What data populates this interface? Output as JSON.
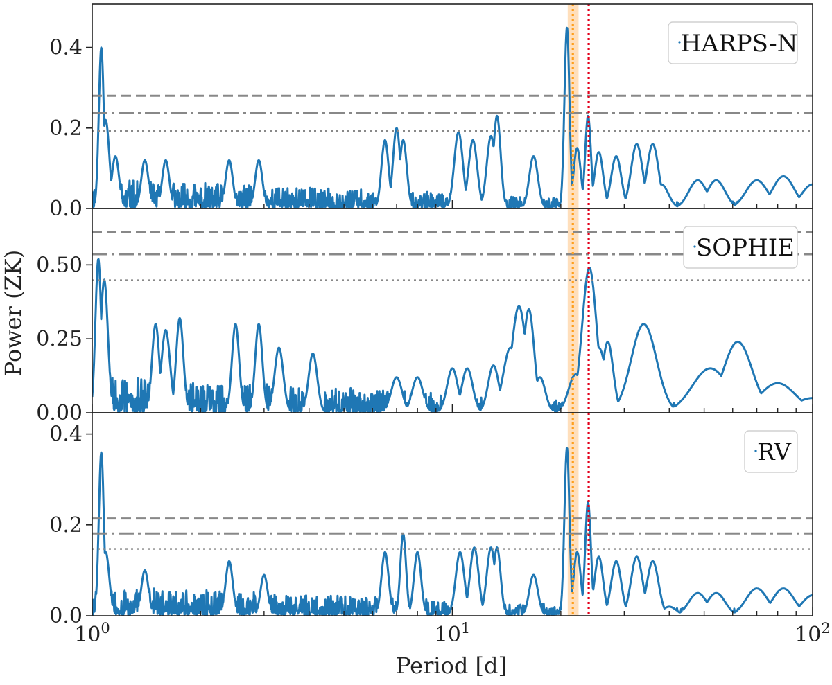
{
  "chart_data": {
    "type": "line",
    "xlabel": "Period [d]",
    "ylabel": "Power (ZK)",
    "xscale": "log",
    "xlim": [
      1,
      100
    ],
    "x_ticks": [
      {
        "base": "10",
        "exp": "0",
        "value": 1
      },
      {
        "base": "10",
        "exp": "1",
        "value": 10
      },
      {
        "base": "10",
        "exp": "2",
        "value": 100
      }
    ],
    "highlight_band": {
      "from": 20.9,
      "to": 22.4,
      "color": "#ffd9b0"
    },
    "vlines": [
      {
        "x": 21.6,
        "color": "#ff9f1c",
        "style": "dotted"
      },
      {
        "x": 23.9,
        "color": "#e3001b",
        "style": "dotted"
      }
    ],
    "line_color": "#1f77b4",
    "threshold_color": "#888888",
    "panels": [
      {
        "name": "HARPS-N",
        "legend": "HARPS-N",
        "ylim": [
          0,
          0.5
        ],
        "yticks": [
          {
            "value": 0.0,
            "label": "0.0"
          },
          {
            "value": 0.2,
            "label": "0.2"
          },
          {
            "value": 0.4,
            "label": "0.4"
          }
        ],
        "fap": [
          0.28,
          0.237,
          0.193
        ],
        "seed": 11,
        "noise": 0.045,
        "peaks": [
          [
            1.06,
            0.4,
            0.007
          ],
          [
            1.09,
            0.22,
            0.01
          ],
          [
            1.16,
            0.13,
            0.01
          ],
          [
            1.4,
            0.12,
            0.01
          ],
          [
            1.6,
            0.12,
            0.01
          ],
          [
            2.4,
            0.12,
            0.01
          ],
          [
            2.9,
            0.12,
            0.01
          ],
          [
            6.5,
            0.17,
            0.01
          ],
          [
            7.0,
            0.2,
            0.01
          ],
          [
            7.3,
            0.17,
            0.01
          ],
          [
            10.4,
            0.19,
            0.012
          ],
          [
            11.4,
            0.17,
            0.012
          ],
          [
            12.8,
            0.18,
            0.012
          ],
          [
            13.3,
            0.23,
            0.01
          ],
          [
            16.8,
            0.13,
            0.012
          ],
          [
            20.8,
            0.45,
            0.007
          ],
          [
            22.2,
            0.15,
            0.01
          ],
          [
            23.8,
            0.23,
            0.008
          ],
          [
            25.5,
            0.14,
            0.012
          ],
          [
            28.5,
            0.13,
            0.014
          ],
          [
            32.5,
            0.16,
            0.016
          ],
          [
            36.0,
            0.16,
            0.016
          ],
          [
            38.0,
            0.06,
            0.02
          ],
          [
            48.0,
            0.07,
            0.025
          ],
          [
            54.0,
            0.07,
            0.025
          ],
          [
            70.0,
            0.07,
            0.03
          ],
          [
            83.0,
            0.08,
            0.03
          ],
          [
            100.0,
            0.06,
            0.03
          ]
        ]
      },
      {
        "name": "SOPHIE",
        "legend": "SOPHIE",
        "ylim": [
          0,
          0.68
        ],
        "yticks": [
          {
            "value": 0.0,
            "label": "0.00"
          },
          {
            "value": 0.25,
            "label": "0.25"
          },
          {
            "value": 0.5,
            "label": "0.50"
          }
        ],
        "fap": [
          0.61,
          0.536,
          0.448
        ],
        "seed": 29,
        "noise": 0.08,
        "peaks": [
          [
            1.04,
            0.52,
            0.008
          ],
          [
            1.08,
            0.45,
            0.01
          ],
          [
            1.5,
            0.3,
            0.01
          ],
          [
            1.6,
            0.28,
            0.012
          ],
          [
            1.75,
            0.32,
            0.01
          ],
          [
            2.5,
            0.3,
            0.01
          ],
          [
            2.9,
            0.3,
            0.01
          ],
          [
            3.3,
            0.22,
            0.012
          ],
          [
            4.1,
            0.2,
            0.012
          ],
          [
            7.0,
            0.12,
            0.015
          ],
          [
            8.0,
            0.12,
            0.015
          ],
          [
            10.0,
            0.15,
            0.015
          ],
          [
            11.0,
            0.15,
            0.015
          ],
          [
            13.0,
            0.16,
            0.015
          ],
          [
            14.5,
            0.22,
            0.02
          ],
          [
            15.3,
            0.36,
            0.02
          ],
          [
            16.3,
            0.35,
            0.015
          ],
          [
            17.5,
            0.12,
            0.015
          ],
          [
            22.0,
            0.13,
            0.02
          ],
          [
            24.0,
            0.49,
            0.02
          ],
          [
            25.5,
            0.22,
            0.02
          ],
          [
            27.0,
            0.24,
            0.015
          ],
          [
            34.0,
            0.3,
            0.035
          ],
          [
            52.0,
            0.15,
            0.05
          ],
          [
            62.0,
            0.24,
            0.04
          ],
          [
            80.0,
            0.1,
            0.05
          ],
          [
            100.0,
            0.05,
            0.05
          ]
        ]
      },
      {
        "name": "RV",
        "legend": "RV",
        "ylim": [
          0,
          0.44
        ],
        "yticks": [
          {
            "value": 0.0,
            "label": "0.0"
          },
          {
            "value": 0.2,
            "label": "0.2"
          },
          {
            "value": 0.4,
            "label": "0.4"
          }
        ],
        "fap": [
          0.214,
          0.181,
          0.147
        ],
        "seed": 47,
        "noise": 0.04,
        "peaks": [
          [
            1.06,
            0.36,
            0.007
          ],
          [
            1.09,
            0.14,
            0.01
          ],
          [
            1.4,
            0.1,
            0.01
          ],
          [
            2.4,
            0.12,
            0.01
          ],
          [
            3.0,
            0.09,
            0.01
          ],
          [
            6.5,
            0.14,
            0.01
          ],
          [
            7.3,
            0.18,
            0.008
          ],
          [
            8.0,
            0.14,
            0.01
          ],
          [
            10.5,
            0.14,
            0.012
          ],
          [
            11.5,
            0.15,
            0.012
          ],
          [
            12.8,
            0.15,
            0.012
          ],
          [
            13.3,
            0.15,
            0.01
          ],
          [
            16.8,
            0.09,
            0.012
          ],
          [
            20.8,
            0.37,
            0.007
          ],
          [
            22.2,
            0.14,
            0.01
          ],
          [
            23.8,
            0.25,
            0.008
          ],
          [
            25.5,
            0.13,
            0.012
          ],
          [
            28.5,
            0.12,
            0.014
          ],
          [
            32.5,
            0.13,
            0.016
          ],
          [
            36.0,
            0.12,
            0.016
          ],
          [
            40.0,
            0.02,
            0.02
          ],
          [
            48.0,
            0.05,
            0.025
          ],
          [
            54.0,
            0.05,
            0.025
          ],
          [
            70.0,
            0.06,
            0.03
          ],
          [
            83.0,
            0.06,
            0.03
          ],
          [
            100.0,
            0.045,
            0.03
          ]
        ]
      }
    ]
  }
}
